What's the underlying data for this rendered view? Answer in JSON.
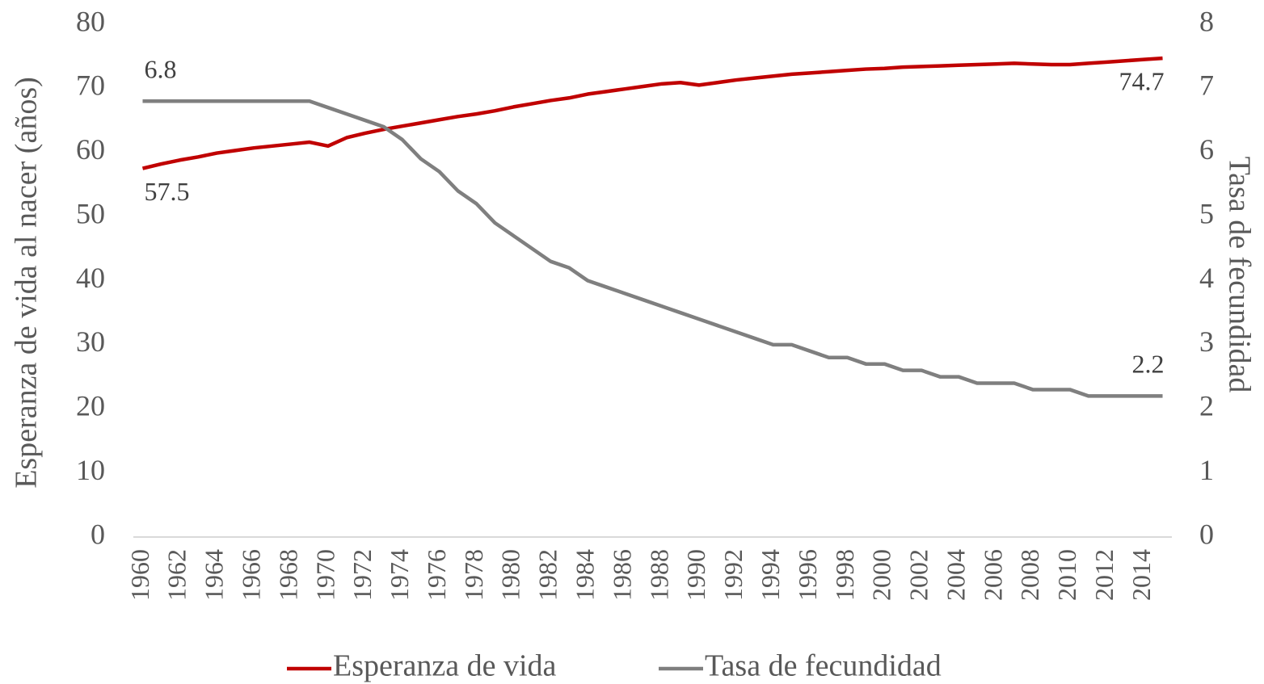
{
  "chart_data": {
    "type": "line",
    "categories": [
      "1960",
      null,
      "1962",
      null,
      "1964",
      null,
      "1966",
      null,
      "1968",
      null,
      "1970",
      null,
      "1972",
      null,
      "1974",
      null,
      "1976",
      null,
      "1978",
      null,
      "1980",
      null,
      "1982",
      null,
      "1984",
      null,
      "1986",
      null,
      "1988",
      null,
      "1990",
      null,
      "1992",
      null,
      "1994",
      null,
      "1996",
      null,
      "1998",
      null,
      "2000",
      null,
      "2002",
      null,
      "2004",
      null,
      "2006",
      null,
      "2008",
      null,
      "2010",
      null,
      "2012",
      null,
      "2014",
      null
    ],
    "series": [
      {
        "name": "Esperanza de vida",
        "color": "#c00000",
        "axis": "y",
        "values": [
          57.5,
          58.2,
          58.8,
          59.3,
          59.9,
          60.3,
          60.7,
          61.0,
          61.3,
          61.6,
          61.0,
          62.3,
          63.0,
          63.6,
          64.1,
          64.6,
          65.1,
          65.6,
          66.0,
          66.5,
          67.1,
          67.6,
          68.1,
          68.5,
          69.1,
          69.5,
          69.9,
          70.3,
          70.7,
          70.9,
          70.5,
          70.9,
          71.3,
          71.6,
          71.9,
          72.2,
          72.4,
          72.6,
          72.8,
          73.0,
          73.1,
          73.3,
          73.4,
          73.5,
          73.6,
          73.7,
          73.8,
          73.9,
          73.8,
          73.7,
          73.7,
          73.9,
          74.1,
          74.3,
          74.5,
          74.7
        ],
        "value_labels": [
          "57.5",
          null,
          null,
          null,
          null,
          null,
          null,
          null,
          null,
          null,
          null,
          null,
          null,
          null,
          null,
          null,
          null,
          null,
          null,
          null,
          null,
          null,
          null,
          null,
          null,
          null,
          null,
          null,
          null,
          null,
          null,
          null,
          null,
          null,
          null,
          null,
          null,
          null,
          null,
          null,
          null,
          null,
          null,
          null,
          null,
          null,
          null,
          null,
          null,
          null,
          null,
          null,
          null,
          null,
          null,
          "74.7"
        ]
      },
      {
        "name": "Tasa de fecundidad",
        "color": "#7f7f7f",
        "axis": "y2",
        "values": [
          6.8,
          6.8,
          6.8,
          6.8,
          6.8,
          6.8,
          6.8,
          6.8,
          6.8,
          6.8,
          6.7,
          6.6,
          6.5,
          6.4,
          6.2,
          5.9,
          5.7,
          5.4,
          5.2,
          4.9,
          4.7,
          4.5,
          4.3,
          4.2,
          4.0,
          3.9,
          3.8,
          3.7,
          3.6,
          3.5,
          3.4,
          3.3,
          3.2,
          3.1,
          3.0,
          3.0,
          2.9,
          2.8,
          2.8,
          2.7,
          2.7,
          2.6,
          2.6,
          2.5,
          2.5,
          2.4,
          2.4,
          2.4,
          2.3,
          2.3,
          2.3,
          2.2,
          2.2,
          2.2,
          2.2,
          2.2
        ],
        "value_labels": [
          "6.8",
          null,
          null,
          null,
          null,
          null,
          null,
          null,
          null,
          null,
          null,
          null,
          null,
          null,
          null,
          null,
          null,
          null,
          null,
          null,
          null,
          null,
          null,
          null,
          null,
          null,
          null,
          null,
          null,
          null,
          null,
          null,
          null,
          null,
          null,
          null,
          null,
          null,
          null,
          null,
          null,
          null,
          null,
          null,
          null,
          null,
          null,
          null,
          null,
          null,
          null,
          null,
          null,
          null,
          null,
          "2.2"
        ]
      }
    ],
    "y_label": "Esperanza de vida al nacer (años)",
    "y2_label": "Tasa de fecundidad",
    "ylim": [
      0,
      80
    ],
    "yticks": [
      0,
      10,
      20,
      30,
      40,
      50,
      60,
      70,
      80
    ],
    "y2lim": [
      0,
      8
    ],
    "y2ticks": [
      0,
      1,
      2,
      3,
      4,
      5,
      6,
      7,
      8
    ],
    "grid": false,
    "legend": "bottom"
  }
}
